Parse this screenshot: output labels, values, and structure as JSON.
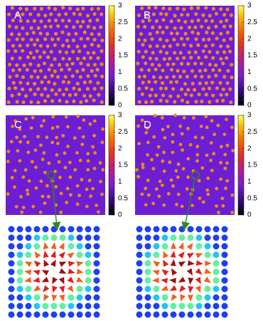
{
  "panels": [
    {
      "label": "A",
      "colorbar": {
        "lim": [
          0,
          3
        ],
        "ticks": [
          0,
          0.5,
          1,
          1.5,
          2,
          2.5,
          3
        ]
      }
    },
    {
      "label": "B",
      "colorbar": {
        "lim": [
          0,
          3
        ],
        "ticks": [
          0,
          0.5,
          1,
          1.5,
          2,
          2.5,
          3
        ]
      }
    },
    {
      "label": "C",
      "colorbar": {
        "lim": [
          0,
          3
        ],
        "ticks": [
          0,
          0.5,
          1,
          1.5,
          2,
          2.5,
          3
        ]
      }
    },
    {
      "label": "D",
      "colorbar": {
        "lim": [
          0,
          3
        ],
        "ticks": [
          0,
          0.5,
          1,
          1.5,
          2,
          2.5,
          3
        ]
      }
    }
  ]
}
